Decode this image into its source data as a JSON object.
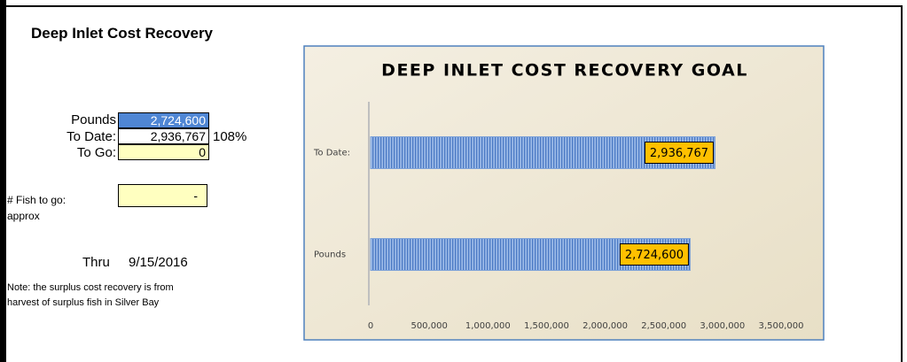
{
  "sheet": {
    "title": "Deep Inlet Cost Recovery",
    "pounds": {
      "label": "Pounds",
      "value": "2,724,600"
    },
    "to_date": {
      "label": "To Date:",
      "value": "2,936,767",
      "percent": "108%"
    },
    "to_go": {
      "label": "To Go:",
      "value": "0"
    },
    "fish": {
      "label": "# Fish to go:",
      "value": "-",
      "note": "approx"
    },
    "thru": {
      "label": "Thru",
      "date": "9/15/2016"
    },
    "note": [
      "Note: the surplus cost recovery is from",
      "harvest of surplus fish in Silver Bay"
    ]
  },
  "chart_data": {
    "type": "bar",
    "horizontal": true,
    "title": "DEEP INLET COST RECOVERY GOAL",
    "categories": [
      "Pounds",
      "To Date:"
    ],
    "values": [
      2724600,
      2936767
    ],
    "value_labels": [
      "2,724,600",
      "2,936,767"
    ],
    "label_color": "#ffc000",
    "xlim": [
      0,
      3500000
    ],
    "xticks": [
      0,
      {
        "value": 500000,
        "label": "500,000"
      },
      {
        "value": 1000000,
        "label": "1,000,000"
      },
      {
        "value": 1500000,
        "label": "1,500,000"
      },
      {
        "value": 2000000,
        "label": "2,000,000"
      },
      {
        "value": 2500000,
        "label": "2,500,000"
      },
      {
        "value": 3000000,
        "label": "3,000,000"
      },
      {
        "value": 3500000,
        "label": "3,500,000"
      }
    ]
  }
}
